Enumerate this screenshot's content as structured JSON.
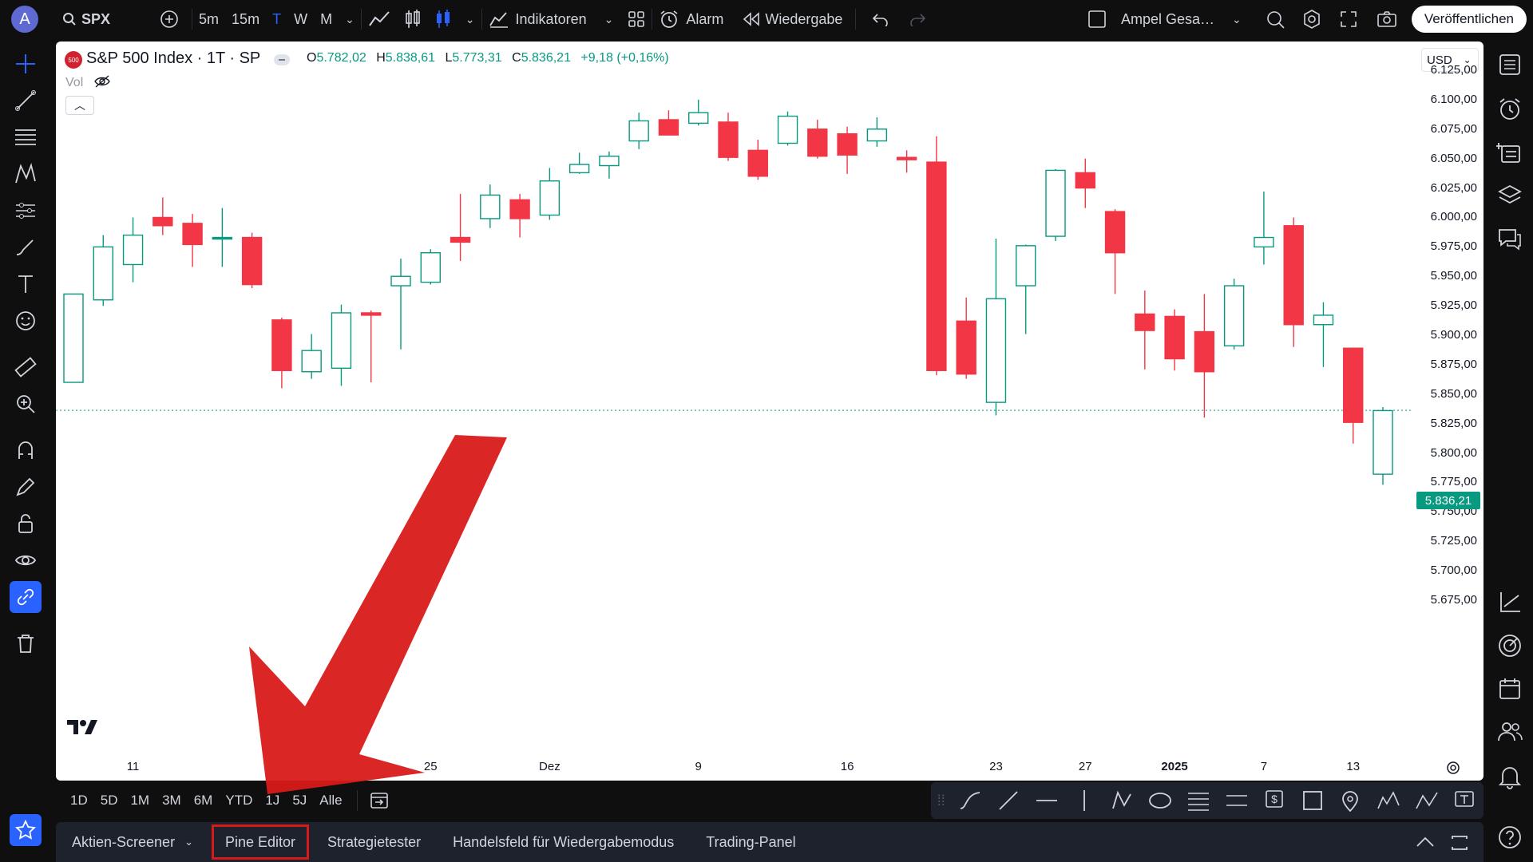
{
  "topbar": {
    "avatar_letter": "A",
    "symbol": "SPX",
    "intervals": [
      "5m",
      "15m",
      "T",
      "W",
      "M"
    ],
    "active_interval": "T",
    "indicators_label": "Indikatoren",
    "alarm_label": "Alarm",
    "replay_label": "Wiedergabe",
    "layout_name": "Ampel Gesa…",
    "publish_label": "Veröffentlichen"
  },
  "legend": {
    "title": "S&P 500 Index · 1T · SP",
    "badge": "500",
    "open_label": "O",
    "open": "5.782,02",
    "high_label": "H",
    "high": "5.838,61",
    "low_label": "L",
    "low": "5.773,31",
    "close_label": "C",
    "close": "5.836,21",
    "change": "+9,18 (+0,16%)",
    "vol_label": "Vol"
  },
  "currency": "USD",
  "current_price": "5.836,21",
  "price_axis": [
    "6.125,00",
    "6.100,00",
    "6.075,00",
    "6.050,00",
    "6.025,00",
    "6.000,00",
    "5.975,00",
    "5.950,00",
    "5.925,00",
    "5.900,00",
    "5.875,00",
    "5.850,00",
    "5.825,00",
    "5.800,00",
    "5.775,00",
    "5.750,00",
    "5.725,00",
    "5.700,00",
    "5.675,00"
  ],
  "date_axis": [
    "11",
    "25",
    "Dez",
    "9",
    "16",
    "23",
    "27",
    "2025",
    "7",
    "13"
  ],
  "colors": {
    "up": "#089981",
    "down": "#f23645",
    "annotation": "#d91a1a",
    "background": "#ffffff"
  },
  "chart_data": {
    "type": "candlestick",
    "ylim": [
      5660,
      6140
    ],
    "candles": [
      {
        "o": 5860,
        "h": 5935,
        "l": 5860,
        "c": 5935
      },
      {
        "o": 5930,
        "h": 5985,
        "l": 5925,
        "c": 5975
      },
      {
        "o": 5960,
        "h": 6000,
        "l": 5945,
        "c": 5985
      },
      {
        "o": 6000,
        "h": 6017,
        "l": 5985,
        "c": 5993
      },
      {
        "o": 5995,
        "h": 6003,
        "l": 5958,
        "c": 5977
      },
      {
        "o": 5983,
        "h": 6008,
        "l": 5958,
        "c": 5983
      },
      {
        "o": 5983,
        "h": 5987,
        "l": 5940,
        "c": 5943
      },
      {
        "o": 5913,
        "h": 5915,
        "l": 5855,
        "c": 5870
      },
      {
        "o": 5869,
        "h": 5901,
        "l": 5863,
        "c": 5887
      },
      {
        "o": 5872,
        "h": 5926,
        "l": 5857,
        "c": 5919
      },
      {
        "o": 5919,
        "h": 5921,
        "l": 5860,
        "c": 5917
      },
      {
        "o": 5942,
        "h": 5965,
        "l": 5888,
        "c": 5950
      },
      {
        "o": 5945,
        "h": 5973,
        "l": 5943,
        "c": 5970
      },
      {
        "o": 5983,
        "h": 6020,
        "l": 5963,
        "c": 5979
      },
      {
        "o": 5999,
        "h": 6028,
        "l": 5991,
        "c": 6019
      },
      {
        "o": 6015,
        "h": 6020,
        "l": 5983,
        "c": 5999
      },
      {
        "o": 6002,
        "h": 6042,
        "l": 5998,
        "c": 6031
      },
      {
        "o": 6038,
        "h": 6055,
        "l": 6037,
        "c": 6045
      },
      {
        "o": 6044,
        "h": 6056,
        "l": 6033,
        "c": 6052
      },
      {
        "o": 6065,
        "h": 6089,
        "l": 6058,
        "c": 6082
      },
      {
        "o": 6083,
        "h": 6091,
        "l": 6071,
        "c": 6070
      },
      {
        "o": 6080,
        "h": 6100,
        "l": 6078,
        "c": 6089
      },
      {
        "o": 6081,
        "h": 6089,
        "l": 6048,
        "c": 6051
      },
      {
        "o": 6057,
        "h": 6066,
        "l": 6032,
        "c": 6035
      },
      {
        "o": 6063,
        "h": 6090,
        "l": 6061,
        "c": 6086
      },
      {
        "o": 6075,
        "h": 6083,
        "l": 6050,
        "c": 6052
      },
      {
        "o": 6071,
        "h": 6077,
        "l": 6037,
        "c": 6053
      },
      {
        "o": 6065,
        "h": 6085,
        "l": 6060,
        "c": 6075
      },
      {
        "o": 6051,
        "h": 6057,
        "l": 6038,
        "c": 6049
      },
      {
        "o": 6047,
        "h": 6069,
        "l": 5866,
        "c": 5870
      },
      {
        "o": 5912,
        "h": 5932,
        "l": 5863,
        "c": 5867
      },
      {
        "o": 5843,
        "h": 5982,
        "l": 5832,
        "c": 5931
      },
      {
        "o": 5942,
        "h": 5977,
        "l": 5901,
        "c": 5976
      },
      {
        "o": 5984,
        "h": 6041,
        "l": 5980,
        "c": 6040
      },
      {
        "o": 6038,
        "h": 6050,
        "l": 6008,
        "c": 6025
      },
      {
        "o": 6005,
        "h": 6007,
        "l": 5935,
        "c": 5970
      },
      {
        "o": 5918,
        "h": 5938,
        "l": 5871,
        "c": 5904
      },
      {
        "o": 5916,
        "h": 5922,
        "l": 5870,
        "c": 5880
      },
      {
        "o": 5903,
        "h": 5935,
        "l": 5830,
        "c": 5869
      },
      {
        "o": 5891,
        "h": 5948,
        "l": 5888,
        "c": 5942
      },
      {
        "o": 5975,
        "h": 6022,
        "l": 5960,
        "c": 5983
      },
      {
        "o": 5993,
        "h": 6000,
        "l": 5890,
        "c": 5909
      },
      {
        "o": 5909,
        "h": 5928,
        "l": 5873,
        "c": 5917
      },
      {
        "o": 5889,
        "h": 5889,
        "l": 5808,
        "c": 5826
      },
      {
        "o": 5782,
        "h": 5839,
        "l": 5773,
        "c": 5836
      }
    ]
  },
  "range_buttons": [
    "1D",
    "5D",
    "1M",
    "3M",
    "6M",
    "YTD",
    "1J",
    "5J",
    "Alle"
  ],
  "bottom_tabs": [
    "Aktien-Screener",
    "Pine Editor",
    "Strategietester",
    "Handelsfeld für Wiedergabemodus",
    "Trading-Panel"
  ],
  "highlighted_tab": "Pine Editor",
  "icons": {
    "left": [
      "crosshair-icon",
      "trendline-icon",
      "fib-icon",
      "pattern-icon",
      "forecast-icon",
      "brush-icon",
      "text-icon",
      "emoji-icon",
      "ruler-icon",
      "zoom-icon",
      "magnet-icon",
      "lock-drawing-icon",
      "lock-icon",
      "eye-icon",
      "link-icon",
      "trash-icon",
      "star-icon"
    ],
    "right": [
      "watchlist-icon",
      "alarm-icon",
      "hotlist-icon",
      "layers-icon",
      "chat-icon",
      "chart-tool-icon",
      "target-icon",
      "calendar-icon",
      "people-icon",
      "bell-icon",
      "help-icon"
    ]
  }
}
